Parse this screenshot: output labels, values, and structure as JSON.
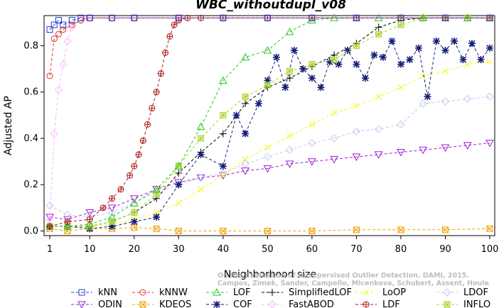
{
  "chart_data": {
    "type": "line",
    "title": "WBC_withoutdupl_v08",
    "xlabel": "Neighborhood size",
    "ylabel": "Adjusted AP",
    "xlim": [
      1,
      100
    ],
    "ylim": [
      -0.02,
      0.93
    ],
    "x_ticks": [
      1,
      10,
      20,
      30,
      40,
      50,
      60,
      70,
      80,
      90,
      100
    ],
    "y_ticks": [
      0.0,
      0.2,
      0.4,
      0.6,
      0.8
    ],
    "y_tick_labels": [
      "0.0",
      "0.2",
      "0.4",
      "0.6",
      "0.8"
    ],
    "grid": false,
    "legend_position": "bottom",
    "credit_lines": [
      "Campos, Zimek, Sander, Campello, Micenkova, Schubert, Assent, Houle",
      "On the Evaluation of Unsupervised Outlier Detection. DAMI, 2015."
    ],
    "series": [
      {
        "name": "kNN",
        "color": "#1f3fd6",
        "marker": "square",
        "x": [
          1,
          2,
          3,
          4,
          6,
          8,
          10,
          15,
          20,
          30,
          40,
          50,
          60,
          70,
          80,
          90,
          100
        ],
        "y": [
          0.87,
          0.89,
          0.91,
          0.89,
          0.91,
          0.92,
          0.92,
          0.92,
          0.92,
          0.92,
          0.92,
          0.92,
          0.92,
          0.92,
          0.92,
          0.92,
          0.92
        ]
      },
      {
        "name": "kNNW",
        "color": "#e0342c",
        "marker": "circle",
        "x": [
          1,
          2,
          3,
          4,
          6,
          8,
          10,
          15,
          20,
          30,
          40,
          50,
          60,
          70,
          80,
          90,
          100
        ],
        "y": [
          0.67,
          0.83,
          0.85,
          0.87,
          0.89,
          0.91,
          0.92,
          0.92,
          0.92,
          0.92,
          0.92,
          0.92,
          0.92,
          0.92,
          0.92,
          0.92,
          0.92
        ]
      },
      {
        "name": "LOF",
        "color": "#26c81e",
        "marker": "triangle-up",
        "x": [
          1,
          5,
          10,
          15,
          20,
          25,
          30,
          35,
          40,
          45,
          50,
          55,
          60,
          65,
          70,
          75,
          80,
          85,
          90,
          95,
          100
        ],
        "y": [
          0.02,
          0.02,
          0.03,
          0.06,
          0.12,
          0.18,
          0.28,
          0.45,
          0.65,
          0.75,
          0.78,
          0.86,
          0.91,
          0.92,
          0.92,
          0.92,
          0.92,
          0.92,
          0.92,
          0.92,
          0.92
        ]
      },
      {
        "name": "SimplifiedLOF",
        "color": "#000000",
        "marker": "plus",
        "x": [
          1,
          5,
          10,
          15,
          20,
          25,
          30,
          35,
          40,
          45,
          50,
          55,
          60,
          65,
          70,
          75,
          80,
          85,
          90,
          95,
          100
        ],
        "y": [
          0.02,
          0.02,
          0.02,
          0.04,
          0.08,
          0.14,
          0.25,
          0.34,
          0.42,
          0.55,
          0.62,
          0.66,
          0.71,
          0.76,
          0.81,
          0.88,
          0.91,
          0.92,
          0.92,
          0.92,
          0.92
        ]
      },
      {
        "name": "LoOP",
        "color": "#f6f61e",
        "marker": "x",
        "x": [
          1,
          5,
          10,
          15,
          20,
          25,
          30,
          35,
          40,
          45,
          50,
          55,
          60,
          65,
          70,
          75,
          80,
          85,
          90,
          95,
          100
        ],
        "y": [
          0.02,
          0.02,
          0.02,
          0.03,
          0.05,
          0.08,
          0.12,
          0.18,
          0.24,
          0.31,
          0.36,
          0.41,
          0.46,
          0.51,
          0.54,
          0.58,
          0.62,
          0.67,
          0.69,
          0.72,
          0.73
        ]
      },
      {
        "name": "LDOF",
        "color": "#c8c8f0",
        "marker": "diamond",
        "x": [
          1,
          5,
          10,
          15,
          20,
          25,
          30,
          35,
          40,
          45,
          50,
          55,
          60,
          65,
          70,
          75,
          80,
          85,
          90,
          95,
          100
        ],
        "y": [
          0.11,
          0.07,
          0.06,
          0.08,
          0.12,
          0.17,
          0.2,
          0.23,
          0.25,
          0.29,
          0.32,
          0.35,
          0.38,
          0.4,
          0.43,
          0.44,
          0.46,
          0.55,
          0.56,
          0.57,
          0.58
        ]
      },
      {
        "name": "ODIN",
        "color": "#9a1ed6",
        "marker": "triangle-down",
        "x": [
          1,
          5,
          10,
          15,
          20,
          25,
          30,
          35,
          40,
          45,
          50,
          55,
          60,
          65,
          70,
          75,
          80,
          85,
          90,
          95,
          100
        ],
        "y": [
          0.06,
          0.05,
          0.08,
          0.1,
          0.14,
          0.18,
          0.21,
          0.23,
          0.24,
          0.26,
          0.27,
          0.29,
          0.3,
          0.31,
          0.32,
          0.33,
          0.34,
          0.35,
          0.36,
          0.37,
          0.38
        ]
      },
      {
        "name": "KDEOS",
        "color": "#f0a000",
        "marker": "square-x",
        "x": [
          1,
          5,
          10,
          15,
          20,
          25,
          30,
          40,
          50,
          60,
          70,
          80,
          90,
          100
        ],
        "y": [
          0.01,
          0.0,
          0.01,
          0.01,
          0.015,
          0.01,
          0.0,
          0.0,
          0.0,
          0.0,
          0.005,
          0.005,
          0.005,
          0.01
        ]
      },
      {
        "name": "COF",
        "color": "#141e78",
        "marker": "asterisk",
        "x": [
          1,
          5,
          10,
          15,
          20,
          25,
          30,
          35,
          40,
          43,
          45,
          48,
          50,
          52,
          54,
          56,
          58,
          60,
          62,
          64,
          66,
          68,
          70,
          72,
          74,
          76,
          78,
          80,
          82,
          84,
          86,
          88,
          90,
          92,
          94,
          96,
          98,
          100
        ],
        "y": [
          0.02,
          0.02,
          0.01,
          0.02,
          0.04,
          0.06,
          0.2,
          0.33,
          0.28,
          0.5,
          0.42,
          0.55,
          0.65,
          0.75,
          0.62,
          0.78,
          0.7,
          0.66,
          0.62,
          0.73,
          0.72,
          0.78,
          0.72,
          0.66,
          0.76,
          0.75,
          0.82,
          0.72,
          0.74,
          0.79,
          0.58,
          0.82,
          0.78,
          0.82,
          0.74,
          0.81,
          0.74,
          0.79
        ]
      },
      {
        "name": "FastABOD",
        "color": "#ffb0ff",
        "marker": "diamond",
        "x": [
          1,
          2,
          3,
          4,
          5,
          6,
          8,
          10,
          15,
          20,
          30,
          40,
          50,
          60,
          70,
          80,
          90,
          100
        ],
        "y": [
          0.05,
          0.42,
          0.61,
          0.72,
          0.82,
          0.88,
          0.91,
          0.92,
          0.92,
          0.92,
          0.92,
          0.92,
          0.92,
          0.92,
          0.92,
          0.92,
          0.92,
          0.92
        ]
      },
      {
        "name": "LDF",
        "color": "#b21a1a",
        "marker": "circle-plus",
        "x": [
          1,
          5,
          10,
          13,
          15,
          17,
          19,
          20,
          21,
          22,
          23,
          24,
          25,
          26,
          27,
          28,
          29,
          30,
          32,
          35,
          40,
          50,
          60,
          70,
          80,
          90,
          100
        ],
        "y": [
          0.02,
          0.04,
          0.05,
          0.1,
          0.14,
          0.18,
          0.24,
          0.28,
          0.33,
          0.39,
          0.46,
          0.53,
          0.6,
          0.68,
          0.77,
          0.84,
          0.89,
          0.91,
          0.92,
          0.92,
          0.92,
          0.92,
          0.92,
          0.92,
          0.92,
          0.92,
          0.92
        ]
      },
      {
        "name": "INFLO",
        "color": "#a8d628",
        "marker": "square-star",
        "x": [
          1,
          5,
          10,
          15,
          20,
          25,
          30,
          35,
          40,
          45,
          50,
          55,
          60,
          65,
          70,
          75,
          80,
          85,
          90,
          95,
          100
        ],
        "y": [
          0.02,
          0.02,
          0.02,
          0.04,
          0.08,
          0.16,
          0.28,
          0.4,
          0.5,
          0.58,
          0.63,
          0.69,
          0.72,
          0.74,
          0.8,
          0.85,
          0.89,
          0.92,
          0.92,
          0.92,
          0.92
        ]
      }
    ]
  }
}
